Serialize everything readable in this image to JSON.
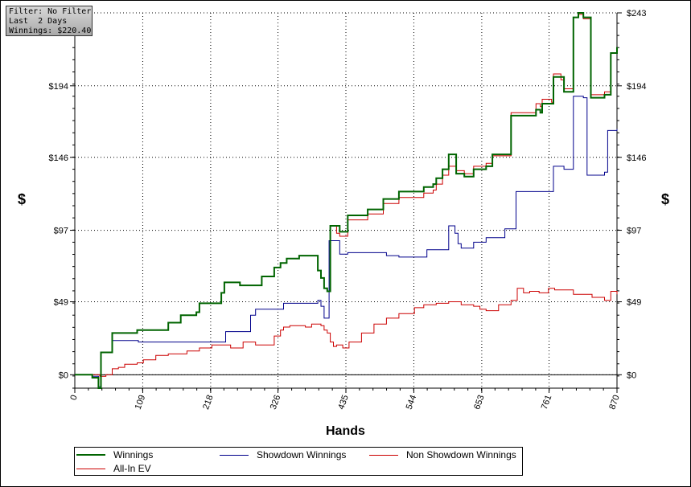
{
  "filter_box": {
    "line1": "Filter: No Filter",
    "line2": "Last  2 Days",
    "line3": "Winnings: $220.40"
  },
  "chart_data": {
    "type": "line",
    "xlabel": "Hands",
    "ylabel": "$",
    "xlim": [
      0,
      870
    ],
    "ylim": [
      -9,
      243
    ],
    "x_ticks": [
      0,
      109,
      218,
      326,
      435,
      544,
      653,
      761,
      870
    ],
    "y_ticks": [
      0,
      49,
      97,
      146,
      194,
      243
    ],
    "y_tick_labels": [
      "$0",
      "$49",
      "$97",
      "$146",
      "$194",
      "$243"
    ],
    "grid": true,
    "legend_position": "bottom",
    "series": [
      {
        "name": "Winnings",
        "color": "#006400",
        "points": [
          [
            0,
            0
          ],
          [
            25,
            0
          ],
          [
            28,
            -2
          ],
          [
            35,
            -2
          ],
          [
            38,
            -9
          ],
          [
            40,
            -9
          ],
          [
            42,
            15
          ],
          [
            55,
            15
          ],
          [
            60,
            28
          ],
          [
            90,
            28
          ],
          [
            100,
            30
          ],
          [
            150,
            35
          ],
          [
            170,
            40
          ],
          [
            195,
            42
          ],
          [
            200,
            48
          ],
          [
            235,
            55
          ],
          [
            240,
            62
          ],
          [
            265,
            60
          ],
          [
            300,
            66
          ],
          [
            320,
            72
          ],
          [
            330,
            75
          ],
          [
            340,
            78
          ],
          [
            360,
            80
          ],
          [
            385,
            80
          ],
          [
            390,
            70
          ],
          [
            395,
            65
          ],
          [
            400,
            58
          ],
          [
            405,
            56
          ],
          [
            410,
            100
          ],
          [
            420,
            100
          ],
          [
            425,
            96
          ],
          [
            435,
            96
          ],
          [
            438,
            107
          ],
          [
            470,
            111
          ],
          [
            495,
            118
          ],
          [
            520,
            123
          ],
          [
            560,
            126
          ],
          [
            575,
            128
          ],
          [
            580,
            132
          ],
          [
            590,
            138
          ],
          [
            600,
            148
          ],
          [
            607,
            148
          ],
          [
            612,
            135
          ],
          [
            625,
            133
          ],
          [
            640,
            138
          ],
          [
            660,
            140
          ],
          [
            670,
            148
          ],
          [
            700,
            174
          ],
          [
            740,
            178
          ],
          [
            747,
            176
          ],
          [
            750,
            182
          ],
          [
            765,
            182
          ],
          [
            768,
            200
          ],
          [
            780,
            200
          ],
          [
            785,
            190
          ],
          [
            795,
            190
          ],
          [
            800,
            240
          ],
          [
            808,
            243
          ],
          [
            816,
            240
          ],
          [
            825,
            240
          ],
          [
            828,
            186
          ],
          [
            845,
            186
          ],
          [
            850,
            188
          ],
          [
            860,
            216
          ],
          [
            870,
            220
          ]
        ]
      },
      {
        "name": "Showdown Winnings",
        "color": "#00008b",
        "points": [
          [
            0,
            0
          ],
          [
            25,
            0
          ],
          [
            28,
            -1
          ],
          [
            35,
            -1
          ],
          [
            38,
            -8
          ],
          [
            40,
            -8
          ],
          [
            42,
            15
          ],
          [
            55,
            15
          ],
          [
            60,
            23
          ],
          [
            100,
            23
          ],
          [
            102,
            22
          ],
          [
            240,
            22
          ],
          [
            242,
            29
          ],
          [
            280,
            29
          ],
          [
            282,
            40
          ],
          [
            290,
            44
          ],
          [
            330,
            44
          ],
          [
            335,
            48
          ],
          [
            365,
            48
          ],
          [
            380,
            48
          ],
          [
            385,
            48
          ],
          [
            390,
            50
          ],
          [
            395,
            46
          ],
          [
            400,
            38
          ],
          [
            405,
            38
          ],
          [
            408,
            90
          ],
          [
            420,
            90
          ],
          [
            425,
            81
          ],
          [
            435,
            81
          ],
          [
            438,
            82
          ],
          [
            470,
            82
          ],
          [
            500,
            80
          ],
          [
            520,
            79
          ],
          [
            560,
            79
          ],
          [
            565,
            84
          ],
          [
            590,
            84
          ],
          [
            600,
            100
          ],
          [
            610,
            95
          ],
          [
            615,
            88
          ],
          [
            620,
            85
          ],
          [
            640,
            89
          ],
          [
            660,
            92
          ],
          [
            690,
            98
          ],
          [
            705,
            98
          ],
          [
            708,
            123
          ],
          [
            730,
            123
          ],
          [
            765,
            123
          ],
          [
            768,
            140
          ],
          [
            780,
            140
          ],
          [
            785,
            138
          ],
          [
            795,
            138
          ],
          [
            800,
            187
          ],
          [
            808,
            187
          ],
          [
            816,
            186
          ],
          [
            820,
            186
          ],
          [
            822,
            134
          ],
          [
            840,
            134
          ],
          [
            850,
            136
          ],
          [
            855,
            164
          ],
          [
            870,
            165
          ]
        ]
      },
      {
        "name": "Non Showdown Winnings",
        "color": "#cc0000",
        "points": [
          [
            0,
            0
          ],
          [
            25,
            0
          ],
          [
            40,
            -1
          ],
          [
            45,
            -1
          ],
          [
            50,
            0
          ],
          [
            60,
            4
          ],
          [
            70,
            5
          ],
          [
            80,
            7
          ],
          [
            100,
            8
          ],
          [
            110,
            10
          ],
          [
            130,
            13
          ],
          [
            150,
            14
          ],
          [
            180,
            16
          ],
          [
            200,
            18
          ],
          [
            220,
            20
          ],
          [
            250,
            18
          ],
          [
            270,
            22
          ],
          [
            290,
            20
          ],
          [
            320,
            26
          ],
          [
            330,
            30
          ],
          [
            335,
            32
          ],
          [
            345,
            33
          ],
          [
            355,
            33
          ],
          [
            370,
            32
          ],
          [
            380,
            34
          ],
          [
            395,
            33
          ],
          [
            400,
            30
          ],
          [
            405,
            28
          ],
          [
            410,
            22
          ],
          [
            415,
            19
          ],
          [
            420,
            20
          ],
          [
            430,
            18
          ],
          [
            440,
            22
          ],
          [
            460,
            28
          ],
          [
            480,
            34
          ],
          [
            500,
            38
          ],
          [
            520,
            41
          ],
          [
            545,
            45
          ],
          [
            560,
            47
          ],
          [
            580,
            48
          ],
          [
            600,
            49
          ],
          [
            620,
            47
          ],
          [
            640,
            46
          ],
          [
            650,
            44
          ],
          [
            660,
            43
          ],
          [
            680,
            47
          ],
          [
            700,
            50
          ],
          [
            710,
            58
          ],
          [
            720,
            55
          ],
          [
            730,
            56
          ],
          [
            745,
            55
          ],
          [
            760,
            58
          ],
          [
            770,
            57
          ],
          [
            790,
            57
          ],
          [
            800,
            54
          ],
          [
            830,
            52
          ],
          [
            850,
            50
          ],
          [
            860,
            56
          ],
          [
            870,
            54
          ]
        ]
      },
      {
        "name": "All-In EV",
        "color": "#cc0000",
        "points": [
          [
            0,
            0
          ],
          [
            25,
            0
          ],
          [
            28,
            -2
          ],
          [
            35,
            -2
          ],
          [
            38,
            -9
          ],
          [
            40,
            -9
          ],
          [
            42,
            15
          ],
          [
            55,
            15
          ],
          [
            60,
            28
          ],
          [
            90,
            28
          ],
          [
            100,
            30
          ],
          [
            150,
            35
          ],
          [
            170,
            40
          ],
          [
            195,
            42
          ],
          [
            200,
            48
          ],
          [
            235,
            55
          ],
          [
            240,
            62
          ],
          [
            265,
            60
          ],
          [
            300,
            66
          ],
          [
            320,
            72
          ],
          [
            330,
            75
          ],
          [
            340,
            78
          ],
          [
            360,
            80
          ],
          [
            385,
            80
          ],
          [
            390,
            70
          ],
          [
            395,
            65
          ],
          [
            400,
            58
          ],
          [
            405,
            56
          ],
          [
            410,
            100
          ],
          [
            420,
            95
          ],
          [
            425,
            93
          ],
          [
            435,
            93
          ],
          [
            438,
            104
          ],
          [
            470,
            108
          ],
          [
            495,
            115
          ],
          [
            520,
            119
          ],
          [
            560,
            122
          ],
          [
            575,
            124
          ],
          [
            580,
            128
          ],
          [
            590,
            134
          ],
          [
            600,
            140
          ],
          [
            607,
            140
          ],
          [
            612,
            137
          ],
          [
            625,
            135
          ],
          [
            640,
            140
          ],
          [
            660,
            142
          ],
          [
            670,
            147
          ],
          [
            700,
            176
          ],
          [
            740,
            182
          ],
          [
            747,
            180
          ],
          [
            750,
            185
          ],
          [
            765,
            183
          ],
          [
            768,
            202
          ],
          [
            780,
            198
          ],
          [
            785,
            192
          ],
          [
            795,
            192
          ],
          [
            800,
            240
          ],
          [
            808,
            242
          ],
          [
            816,
            239
          ],
          [
            825,
            239
          ],
          [
            828,
            188
          ],
          [
            845,
            188
          ],
          [
            850,
            190
          ],
          [
            860,
            216
          ],
          [
            870,
            218
          ]
        ]
      }
    ]
  }
}
